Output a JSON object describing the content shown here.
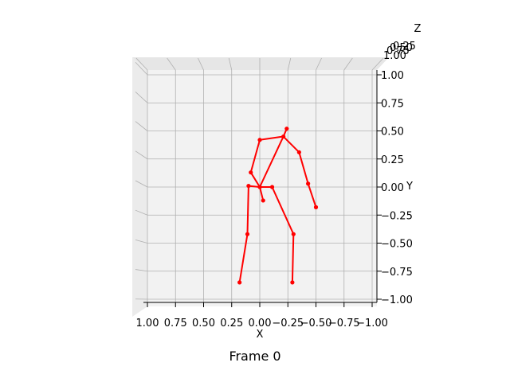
{
  "chart_data": {
    "type": "scatter",
    "view": "3d-skeleton-front",
    "caption": "Frame 0",
    "xlabel": "X",
    "ylabel": "Y",
    "zlabel": "Z",
    "xlim": [
      1.0,
      -1.0
    ],
    "ylim": [
      -1.0,
      1.0
    ],
    "x_ticks": [
      "1.00",
      "0.75",
      "0.50",
      "0.25",
      "0.00",
      "−0.25",
      "−0.50",
      "−0.75",
      "−1.00"
    ],
    "y_ticks": [
      "1.00",
      "0.75",
      "0.50",
      "0.25",
      "0.00",
      "−0.25",
      "−0.50",
      "−0.75",
      "−1.00"
    ],
    "grid": true,
    "color": "#ff0000",
    "joints": [
      {
        "name": "pelvis",
        "x": 0.0,
        "y": 0.0
      },
      {
        "name": "hip_right",
        "x": 0.1,
        "y": 0.01
      },
      {
        "name": "knee_right",
        "x": 0.11,
        "y": -0.42
      },
      {
        "name": "ankle_right",
        "x": 0.18,
        "y": -0.85
      },
      {
        "name": "hip_left",
        "x": -0.11,
        "y": 0.0
      },
      {
        "name": "knee_left",
        "x": -0.3,
        "y": -0.42
      },
      {
        "name": "ankle_left",
        "x": -0.29,
        "y": -0.85
      },
      {
        "name": "spine",
        "x": 0.08,
        "y": 0.13
      },
      {
        "name": "neck",
        "x": -0.21,
        "y": 0.45
      },
      {
        "name": "head",
        "x": -0.24,
        "y": 0.52
      },
      {
        "name": "shoulder_right",
        "x": 0.0,
        "y": 0.42
      },
      {
        "name": "shoulder_left",
        "x": -0.35,
        "y": 0.31
      },
      {
        "name": "elbow_left",
        "x": -0.43,
        "y": 0.03
      },
      {
        "name": "wrist_left",
        "x": -0.5,
        "y": -0.18
      },
      {
        "name": "extra_joint",
        "x": -0.03,
        "y": -0.12
      }
    ],
    "bones": [
      [
        "pelvis",
        "hip_right"
      ],
      [
        "hip_right",
        "knee_right"
      ],
      [
        "knee_right",
        "ankle_right"
      ],
      [
        "pelvis",
        "hip_left"
      ],
      [
        "hip_left",
        "knee_left"
      ],
      [
        "knee_left",
        "ankle_left"
      ],
      [
        "pelvis",
        "spine"
      ],
      [
        "spine",
        "shoulder_right"
      ],
      [
        "shoulder_right",
        "neck"
      ],
      [
        "pelvis",
        "neck"
      ],
      [
        "neck",
        "head"
      ],
      [
        "neck",
        "shoulder_left"
      ],
      [
        "shoulder_left",
        "elbow_left"
      ],
      [
        "elbow_left",
        "wrist_left"
      ],
      [
        "pelvis",
        "extra_joint"
      ]
    ]
  }
}
